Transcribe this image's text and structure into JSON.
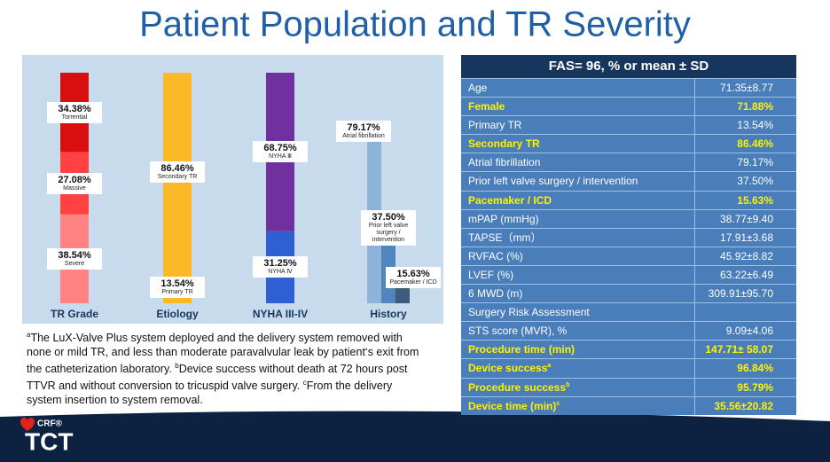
{
  "title": "Patient Population and TR Severity",
  "chart_data": {
    "type": "bar",
    "categories": [
      "TR Grade",
      "Etiology",
      "NYHA III-IV",
      "History"
    ],
    "groups": [
      {
        "mode": "stacked",
        "names": [
          "Torrential",
          "Massive",
          "Severe"
        ],
        "values": [
          34.38,
          27.08,
          38.54
        ],
        "value_labels": [
          "34.38%",
          "27.08%",
          "38.54%"
        ],
        "colors": [
          "#d90f0f",
          "#ff4141",
          "#ff8383"
        ]
      },
      {
        "mode": "stacked",
        "names": [
          "Secondary TR",
          "Primary TR"
        ],
        "values": [
          86.46,
          13.54
        ],
        "value_labels": [
          "86.46%",
          "13.54%"
        ],
        "colors": [
          "#fbb927",
          "#fbb927"
        ]
      },
      {
        "mode": "stacked",
        "names": [
          "NYHA Ⅲ",
          "NYHA Ⅳ"
        ],
        "values": [
          68.75,
          31.25
        ],
        "value_labels": [
          "68.75%",
          "31.25%"
        ],
        "colors": [
          "#7030a0",
          "#2f5fd0"
        ]
      },
      {
        "mode": "grouped",
        "names": [
          "Atrial fibrillation",
          "Prior left valve surgery / intervention",
          "Pacemaker / ICD"
        ],
        "values": [
          79.17,
          37.5,
          15.63
        ],
        "value_labels": [
          "79.17%",
          "37.50%",
          "15.63%"
        ],
        "colors": [
          "#8db4d8",
          "#4f86bd",
          "#3d5c7c"
        ]
      }
    ]
  },
  "footnote": [
    {
      "sup": "a",
      "text": "The LuX-Valve Plus system deployed and the delivery system removed with none or mild TR, and less than moderate paravalvular leak by patient‘s exit from the catheterization laboratory. "
    },
    {
      "sup": "b",
      "text": "Device success without death at 72 hours post TTVR and without conversion to tricuspid valve surgery. "
    },
    {
      "sup": "c",
      "text": "From the delivery system insertion to system removal."
    }
  ],
  "table": {
    "header": "FAS= 96, % or mean ± SD",
    "rows": [
      {
        "label": "Age",
        "value": "71.35±8.77",
        "highlight": false
      },
      {
        "label": "Female",
        "value": "71.88%",
        "highlight": true
      },
      {
        "label": "Primary TR",
        "value": "13.54%",
        "highlight": false
      },
      {
        "label": "Secondary TR",
        "value": "86.46%",
        "highlight": true
      },
      {
        "label": "Atrial  fibrillation",
        "value": "79.17%",
        "highlight": false
      },
      {
        "label": "Prior left valve surgery / intervention",
        "value": "37.50%",
        "highlight": false
      },
      {
        "label": "Pacemaker / ICD",
        "value": "15.63%",
        "highlight": true
      },
      {
        "label": "mPAP (mmHg)",
        "value": "38.77±9.40",
        "highlight": false
      },
      {
        "label": "TAPSE（mm）",
        "value": "17.91±3.68",
        "highlight": false
      },
      {
        "label": "RVFAC (%)",
        "value": "45.92±8.82",
        "highlight": false
      },
      {
        "label": "LVEF (%)",
        "value": "63.22±6.49",
        "highlight": false
      },
      {
        "label": "6 MWD (m)",
        "value": "309.91±95.70",
        "highlight": false
      },
      {
        "label": "Surgery Risk Assessment",
        "value": "",
        "highlight": false
      },
      {
        "label": "STS score (MVR), %",
        "value": "9.09±4.06",
        "highlight": false
      },
      {
        "label": "Procedure time (min)",
        "value": "147.71± 58.07",
        "highlight": true
      },
      {
        "label": "Device success",
        "sup": "a",
        "value": "96.84%",
        "highlight": true
      },
      {
        "label": "Procedure success",
        "sup": "b",
        "value": "95.79%",
        "highlight": true
      },
      {
        "label": "Device time (min)",
        "sup": "c",
        "value": "35.56±20.82",
        "highlight": true
      }
    ]
  },
  "logo": {
    "small": "CRF®",
    "big": "TCT"
  }
}
